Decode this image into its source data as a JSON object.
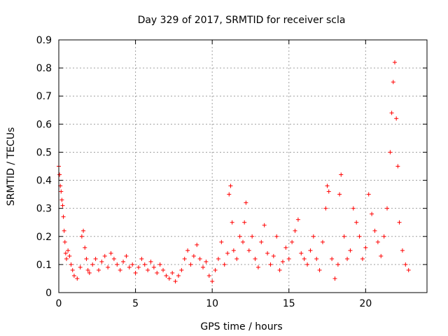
{
  "chart_data": {
    "type": "scatter",
    "title": "Day 329 of 2017, SRMTID for receiver scla",
    "xlabel": "GPS time / hours",
    "ylabel": "SRMTID / TECUs",
    "xlim": [
      0,
      24
    ],
    "ylim": [
      0,
      0.9
    ],
    "xticks": [
      "0",
      "5",
      "10",
      "15",
      "20"
    ],
    "yticks": [
      "0",
      "0.1",
      "0.2",
      "0.3",
      "0.4",
      "0.5",
      "0.6",
      "0.7",
      "0.8",
      "0.9"
    ],
    "grid": true,
    "marker": "+",
    "color": "#ff0000",
    "series": [
      {
        "name": "SRMTID",
        "x": [
          0.0,
          0.05,
          0.1,
          0.15,
          0.2,
          0.25,
          0.3,
          0.35,
          0.4,
          0.45,
          0.5,
          0.6,
          0.7,
          0.8,
          0.9,
          1.0,
          1.2,
          1.4,
          1.5,
          1.6,
          1.7,
          1.8,
          1.9,
          2.0,
          2.2,
          2.4,
          2.6,
          2.8,
          3.0,
          3.2,
          3.4,
          3.6,
          3.8,
          4.0,
          4.2,
          4.4,
          4.6,
          4.8,
          5.0,
          5.2,
          5.4,
          5.6,
          5.8,
          6.0,
          6.2,
          6.4,
          6.6,
          6.8,
          7.0,
          7.2,
          7.4,
          7.6,
          7.8,
          8.0,
          8.2,
          8.4,
          8.6,
          8.8,
          9.0,
          9.2,
          9.4,
          9.6,
          9.8,
          10.0,
          10.2,
          10.4,
          10.6,
          10.8,
          11.0,
          11.1,
          11.2,
          11.3,
          11.4,
          11.6,
          11.8,
          12.0,
          12.1,
          12.2,
          12.4,
          12.6,
          12.8,
          13.0,
          13.2,
          13.4,
          13.6,
          13.8,
          14.0,
          14.2,
          14.4,
          14.6,
          14.8,
          15.0,
          15.2,
          15.4,
          15.6,
          15.8,
          16.0,
          16.2,
          16.4,
          16.6,
          16.8,
          17.0,
          17.2,
          17.4,
          17.5,
          17.6,
          17.8,
          18.0,
          18.2,
          18.3,
          18.4,
          18.6,
          18.8,
          19.0,
          19.2,
          19.4,
          19.6,
          19.8,
          20.0,
          20.2,
          20.4,
          20.6,
          20.8,
          21.0,
          21.2,
          21.4,
          21.6,
          21.7,
          21.8,
          21.9,
          22.0,
          22.1,
          22.2,
          22.4,
          22.6,
          22.8
        ],
        "y": [
          0.45,
          0.42,
          0.38,
          0.36,
          0.33,
          0.31,
          0.27,
          0.22,
          0.18,
          0.14,
          0.12,
          0.15,
          0.13,
          0.1,
          0.08,
          0.06,
          0.05,
          0.09,
          0.2,
          0.22,
          0.16,
          0.12,
          0.08,
          0.07,
          0.1,
          0.12,
          0.08,
          0.11,
          0.13,
          0.09,
          0.14,
          0.12,
          0.1,
          0.08,
          0.11,
          0.13,
          0.09,
          0.1,
          0.07,
          0.09,
          0.12,
          0.1,
          0.08,
          0.11,
          0.09,
          0.07,
          0.1,
          0.08,
          0.06,
          0.05,
          0.07,
          0.04,
          0.06,
          0.08,
          0.12,
          0.15,
          0.1,
          0.13,
          0.17,
          0.12,
          0.09,
          0.11,
          0.06,
          0.04,
          0.08,
          0.12,
          0.18,
          0.1,
          0.14,
          0.35,
          0.38,
          0.25,
          0.15,
          0.12,
          0.2,
          0.18,
          0.25,
          0.32,
          0.15,
          0.2,
          0.12,
          0.09,
          0.18,
          0.24,
          0.14,
          0.1,
          0.13,
          0.2,
          0.08,
          0.11,
          0.16,
          0.12,
          0.18,
          0.22,
          0.26,
          0.14,
          0.12,
          0.1,
          0.15,
          0.2,
          0.12,
          0.08,
          0.18,
          0.3,
          0.38,
          0.36,
          0.12,
          0.05,
          0.1,
          0.35,
          0.42,
          0.2,
          0.12,
          0.15,
          0.3,
          0.25,
          0.2,
          0.12,
          0.16,
          0.35,
          0.28,
          0.22,
          0.18,
          0.13,
          0.2,
          0.3,
          0.5,
          0.64,
          0.75,
          0.82,
          0.62,
          0.45,
          0.25,
          0.15,
          0.1,
          0.08
        ]
      }
    ]
  }
}
